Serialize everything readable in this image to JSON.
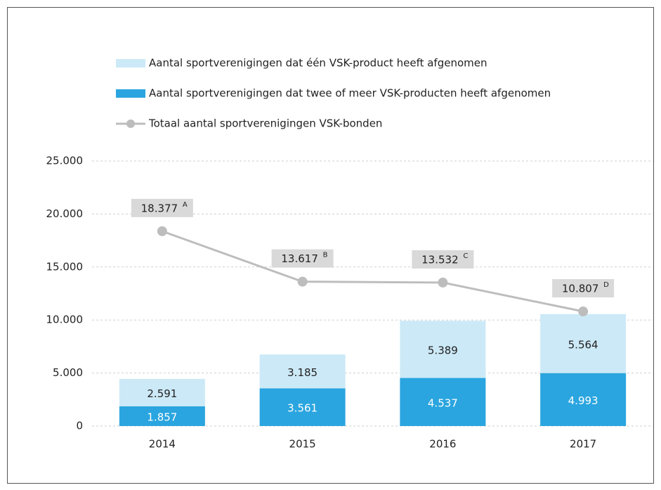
{
  "chart_data": {
    "type": "stacked-bar-line",
    "categories": [
      "2014",
      "2015",
      "2016",
      "2017"
    ],
    "series": [
      {
        "name": "Aantal sportverenigingen dat twee of meer VSK-producten heeft afgenomen",
        "color": "#2aa5df",
        "type": "bar",
        "values": [
          1857,
          3561,
          4537,
          4993
        ],
        "value_labels": [
          "1.857",
          "3.561",
          "4.537",
          "4.993"
        ]
      },
      {
        "name": "Aantal sportverenigingen dat één VSK-product heeft afgenomen",
        "color": "#cce9f7",
        "type": "bar",
        "values": [
          2591,
          3185,
          5389,
          5564
        ],
        "value_labels": [
          "2.591",
          "3.185",
          "5.389",
          "5.564"
        ]
      },
      {
        "name": "Totaal aantal sportverenigingen VSK-bonden",
        "color": "#bdbdbd",
        "type": "line",
        "values": [
          18377,
          13617,
          13532,
          10807
        ],
        "value_labels": [
          "18.377",
          "13.617",
          "13.532",
          "10.807"
        ],
        "value_notes": [
          "A",
          "B",
          "C",
          "D"
        ]
      }
    ],
    "ylim": [
      0,
      25000
    ],
    "yticks": [
      0,
      {
        "value": 5000,
        "label": "5.000"
      },
      {
        "value": 10000,
        "label": "10.000"
      },
      {
        "value": 15000,
        "label": "15.000"
      },
      {
        "value": 20000,
        "label": "20.000"
      },
      {
        "value": 25000,
        "label": "25.000"
      }
    ],
    "grid": true
  }
}
